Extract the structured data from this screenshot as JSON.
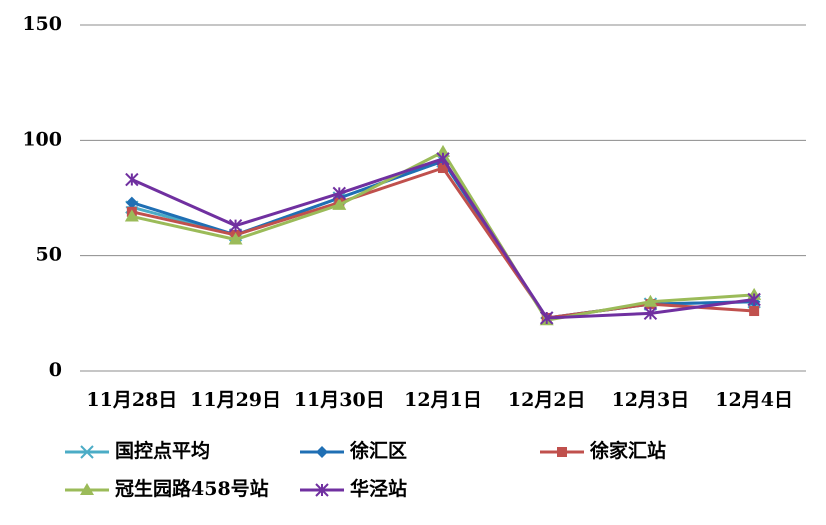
{
  "chart_data": {
    "type": "line",
    "categories": [
      "11月28日",
      "11月29日",
      "11月30日",
      "12月1日",
      "12月2日",
      "12月3日",
      "12月4日"
    ],
    "series": [
      {
        "name": "国控点平均",
        "color": "#4bacc6",
        "marker": "asterisk",
        "values": [
          71,
          59,
          75,
          91,
          23,
          29,
          30
        ]
      },
      {
        "name": "徐汇区",
        "color": "#1f6fb4",
        "marker": "diamond",
        "values": [
          73,
          59,
          75,
          91,
          23,
          29,
          30
        ]
      },
      {
        "name": "徐家汇站",
        "color": "#c0504d",
        "marker": "square",
        "values": [
          69,
          59,
          73,
          88,
          23,
          29,
          26
        ]
      },
      {
        "name": "冠生园路458号站",
        "color": "#9bbb59",
        "marker": "triangle",
        "values": [
          67,
          57,
          72,
          95,
          22,
          30,
          33
        ]
      },
      {
        "name": "华泾站",
        "color": "#7030a0",
        "marker": "star",
        "values": [
          83,
          63,
          77,
          92,
          23,
          25,
          31
        ]
      }
    ],
    "ylim": [
      0,
      150
    ],
    "yticks": [
      0,
      50,
      100,
      150
    ],
    "grid": true,
    "legend": "bottom"
  }
}
